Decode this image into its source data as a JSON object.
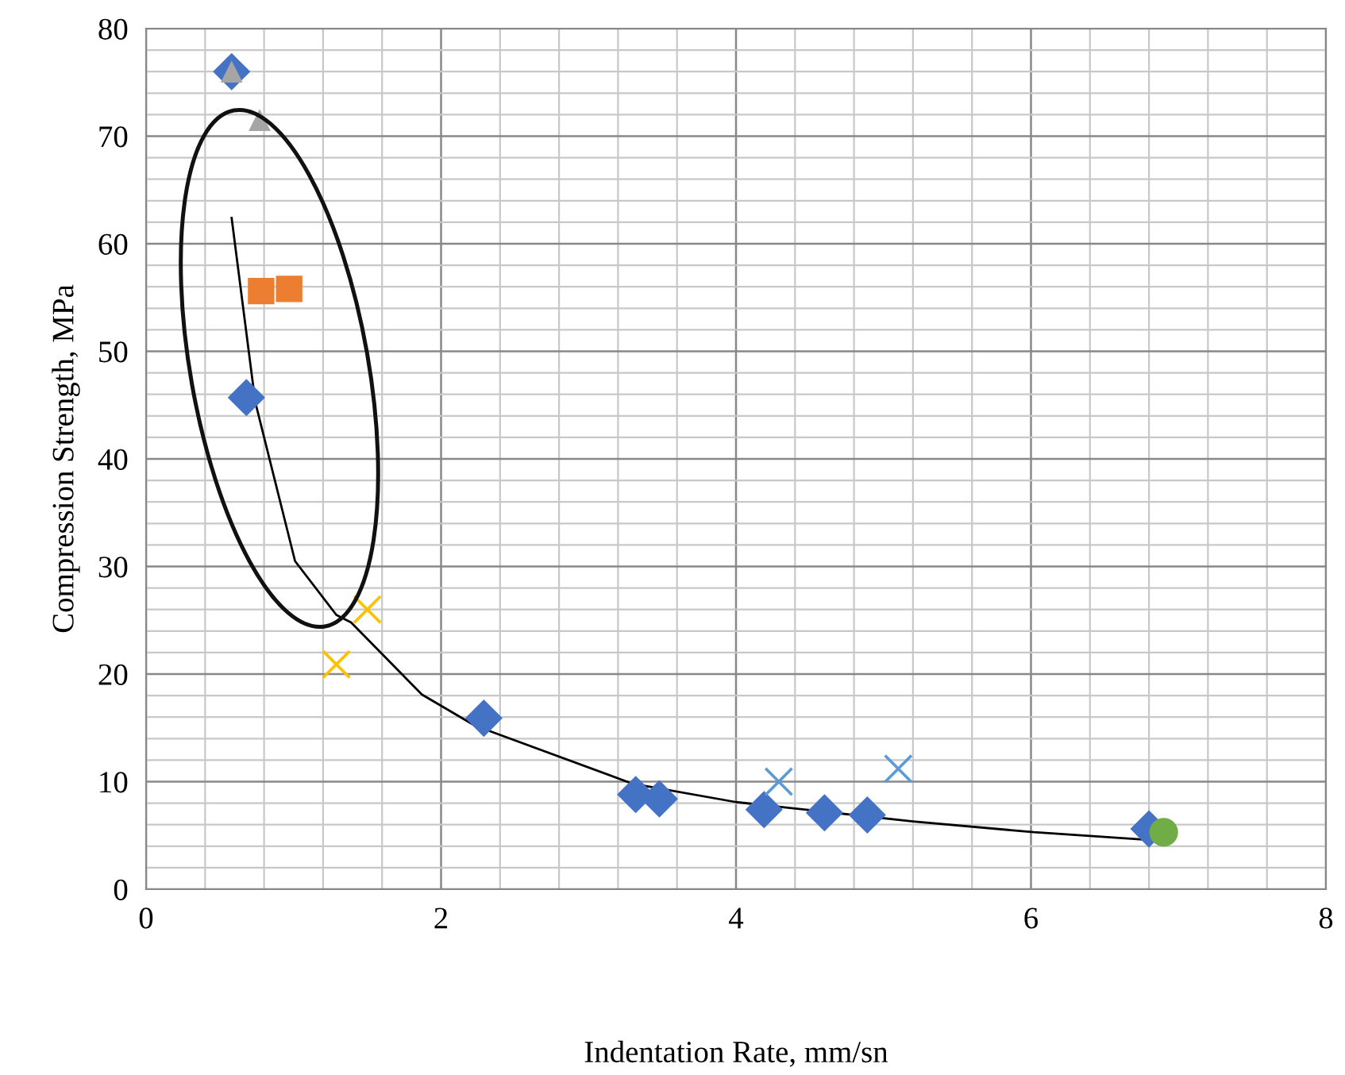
{
  "chart_data": {
    "type": "scatter",
    "xlabel": "Indentation Rate, mm/sn",
    "ylabel": "Compression Strength, MPa",
    "xlim": [
      0,
      8
    ],
    "ylim": [
      0,
      80
    ],
    "xticks": [
      0,
      2,
      4,
      6,
      8
    ],
    "yticks": [
      0,
      10,
      20,
      30,
      40,
      50,
      60,
      70,
      80
    ],
    "grid": true,
    "legend": false,
    "series": [
      {
        "type": "line",
        "color": "#000000",
        "marker": "none",
        "line_style": "solid",
        "x": [
          0.58,
          0.74,
          1.01,
          1.29,
          1.39,
          1.87,
          2.23,
          3.3,
          4.0,
          5.2,
          6.02,
          6.79
        ],
        "values": [
          62.4,
          45.3,
          30.5,
          25.5,
          24.8,
          18.1,
          15.2,
          9.8,
          8.1,
          6.3,
          5.3,
          4.6
        ]
      },
      {
        "color": "#4472c4",
        "marker": "diamond",
        "x": [
          0.58,
          0.68,
          2.29,
          3.32,
          3.48,
          4.19,
          4.6,
          4.89,
          6.8
        ],
        "values": [
          76,
          45.7,
          15.9,
          8.8,
          8.4,
          7.4,
          7.1,
          6.9,
          5.6
        ]
      },
      {
        "color": "#ed7d31",
        "marker": "square",
        "x": [
          0.78,
          0.97
        ],
        "values": [
          55.6,
          55.8
        ]
      },
      {
        "color": "#a5a5a5",
        "marker": "triangle",
        "x": [
          0.58,
          0.77
        ],
        "values": [
          76,
          71.5
        ]
      },
      {
        "color": "#ffc000",
        "marker": "cross",
        "x": [
          1.29,
          1.5
        ],
        "values": [
          20.9,
          26
        ]
      },
      {
        "color": "#5b9bd5",
        "marker": "cross",
        "x": [
          4.29,
          5.1
        ],
        "values": [
          10.0,
          11.2
        ]
      },
      {
        "color": "#70ad47",
        "marker": "circle",
        "x": [
          6.9
        ],
        "values": [
          5.3
        ]
      }
    ]
  }
}
